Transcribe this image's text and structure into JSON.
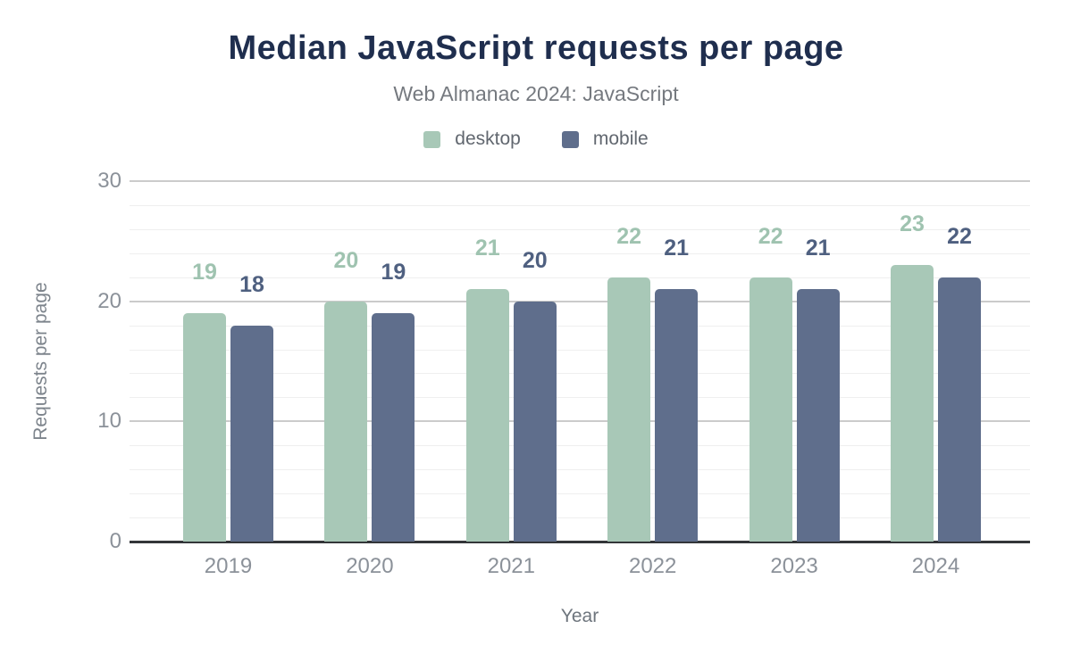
{
  "chart_data": {
    "type": "bar",
    "title": "Median JavaScript requests per page",
    "subtitle": "Web Almanac 2024: JavaScript",
    "xlabel": "Year",
    "ylabel": "Requests per page",
    "categories": [
      "2019",
      "2020",
      "2021",
      "2022",
      "2023",
      "2024"
    ],
    "series": [
      {
        "name": "desktop",
        "values": [
          19,
          20,
          21,
          22,
          22,
          23
        ],
        "color": "#a8c8b7",
        "label_color": "#9fc3b0"
      },
      {
        "name": "mobile",
        "values": [
          18,
          19,
          20,
          21,
          21,
          22
        ],
        "color": "#5f6e8c",
        "label_color": "#4f6080"
      }
    ],
    "ylim": [
      0,
      30
    ],
    "yticks": [
      0,
      10,
      20,
      30
    ],
    "minor_grid_step": 2,
    "grid": true,
    "legend_position": "top",
    "data_labels_shown": true
  },
  "colors": {
    "title": "#1f2e4e",
    "subtitle": "#75797f",
    "tick_labels": "#8b9199",
    "axis_line": "#333639",
    "major_grid": "#cbcbcb",
    "minor_grid": "#efefef",
    "background": "#ffffff"
  }
}
